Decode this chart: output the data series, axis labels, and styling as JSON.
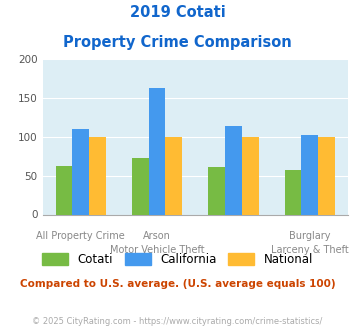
{
  "title_line1": "2019 Cotati",
  "title_line2": "Property Crime Comparison",
  "groups": [
    "Cotati",
    "California",
    "National"
  ],
  "top_labels": [
    "",
    "Arson",
    "",
    "Burglary"
  ],
  "bottom_labels": [
    "All Property Crime",
    "Motor Vehicle Theft",
    "",
    "Larceny & Theft"
  ],
  "values": {
    "Cotati": [
      62,
      73,
      61,
      58
    ],
    "California": [
      110,
      163,
      114,
      103
    ],
    "National": [
      100,
      100,
      100,
      100
    ]
  },
  "bar_colors": {
    "Cotati": "#77bb44",
    "California": "#4499ee",
    "National": "#ffbb33"
  },
  "ylim": [
    0,
    200
  ],
  "yticks": [
    0,
    50,
    100,
    150,
    200
  ],
  "background_color": "#ddeef5",
  "title_color": "#1166cc",
  "tick_label_color": "#888888",
  "note_text": "Compared to U.S. average. (U.S. average equals 100)",
  "note_color": "#cc4400",
  "footer_text": "© 2025 CityRating.com - https://www.cityrating.com/crime-statistics/",
  "footer_color": "#aaaaaa",
  "bar_width": 0.22
}
